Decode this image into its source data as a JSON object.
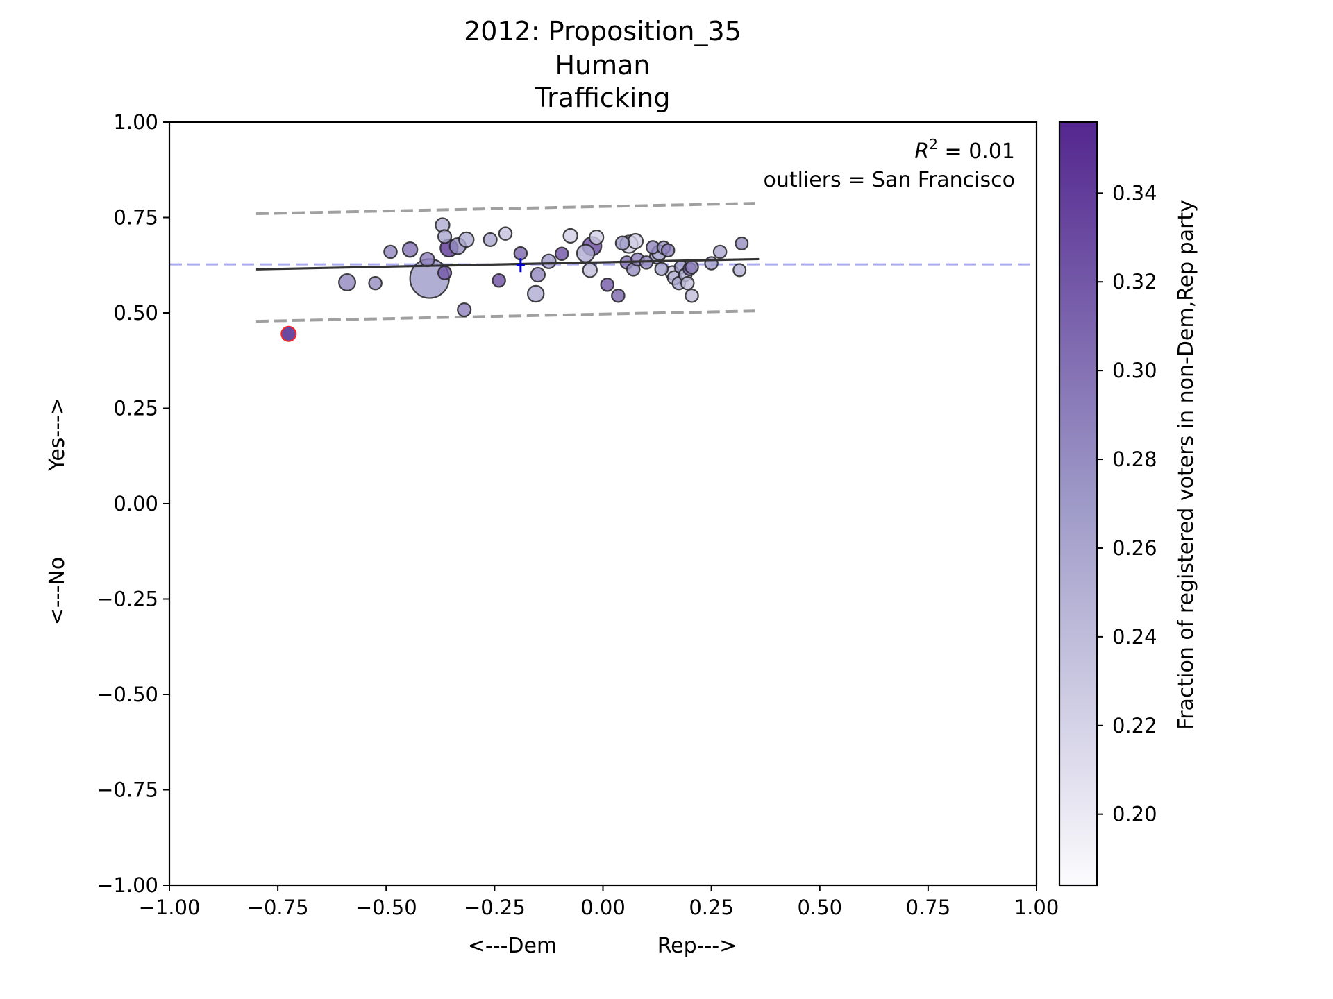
{
  "chart_data": {
    "type": "scatter",
    "title_lines": [
      "2012: Proposition_35",
      "Human",
      "Trafficking"
    ],
    "xlabel_left": "<---Dem",
    "xlabel_right": "Rep--->",
    "ylabel_bottom": "<---No",
    "ylabel_top": "Yes--->",
    "xlim": [
      -1.0,
      1.0
    ],
    "ylim": [
      -1.0,
      1.0
    ],
    "xticks": [
      -1.0,
      -0.75,
      -0.5,
      -0.25,
      0.0,
      0.25,
      0.5,
      0.75,
      1.0
    ],
    "yticks": [
      -1.0,
      -0.75,
      -0.5,
      -0.25,
      0.0,
      0.25,
      0.5,
      0.75,
      1.0
    ],
    "xtick_labels": [
      "−1.00",
      "−0.75",
      "−0.50",
      "−0.25",
      "0.00",
      "0.25",
      "0.50",
      "0.75",
      "1.00"
    ],
    "ytick_labels": [
      "−1.00",
      "−0.75",
      "−0.50",
      "−0.25",
      "0.00",
      "0.25",
      "0.50",
      "0.75",
      "1.00"
    ],
    "grid": false,
    "annotation_r2": {
      "prefix": "R",
      "sup": "2",
      "suffix": " = 0.01"
    },
    "annotation_outliers": "outliers = San Francisco",
    "mean_line_y": 0.627,
    "mean_marker": {
      "x": -0.19,
      "y": 0.625
    },
    "fit_line": {
      "x": [
        -0.8,
        0.36
      ],
      "y": [
        0.614,
        0.641
      ]
    },
    "upper_band": {
      "x": [
        -0.8,
        0.35
      ],
      "y": [
        0.76,
        0.787
      ]
    },
    "lower_band": {
      "x": [
        -0.8,
        0.35
      ],
      "y": [
        0.478,
        0.505
      ]
    },
    "colorbar": {
      "label": "Fraction of registered voters in non-Dem,Rep party",
      "range": [
        0.184,
        0.356
      ],
      "ticks": [
        0.2,
        0.22,
        0.24,
        0.26,
        0.28,
        0.3,
        0.32,
        0.34
      ],
      "tick_labels": [
        "0.20",
        "0.22",
        "0.24",
        "0.26",
        "0.28",
        "0.30",
        "0.32",
        "0.34"
      ],
      "color_low": "#fcfbfd",
      "color_high": "#54278f"
    },
    "outlier_points": [
      {
        "name": "San Francisco",
        "x": -0.725,
        "y": 0.445,
        "size": 1,
        "c": 0.33,
        "edge": "#ff2020"
      }
    ],
    "points": [
      {
        "x": -0.4,
        "y": 0.59,
        "size": 14,
        "c": 0.27
      },
      {
        "x": -0.59,
        "y": 0.58,
        "size": 2.5,
        "c": 0.285
      },
      {
        "x": -0.525,
        "y": 0.578,
        "size": 1.5,
        "c": 0.28
      },
      {
        "x": -0.49,
        "y": 0.66,
        "size": 1.5,
        "c": 0.285
      },
      {
        "x": -0.445,
        "y": 0.666,
        "size": 2,
        "c": 0.3
      },
      {
        "x": -0.405,
        "y": 0.64,
        "size": 1.8,
        "c": 0.29
      },
      {
        "x": -0.37,
        "y": 0.73,
        "size": 1.8,
        "c": 0.255
      },
      {
        "x": -0.365,
        "y": 0.7,
        "size": 1.6,
        "c": 0.26
      },
      {
        "x": -0.365,
        "y": 0.605,
        "size": 1.6,
        "c": 0.32
      },
      {
        "x": -0.355,
        "y": 0.67,
        "size": 2.8,
        "c": 0.345
      },
      {
        "x": -0.335,
        "y": 0.675,
        "size": 2.4,
        "c": 0.28
      },
      {
        "x": -0.315,
        "y": 0.692,
        "size": 2.0,
        "c": 0.255
      },
      {
        "x": -0.32,
        "y": 0.508,
        "size": 1.6,
        "c": 0.29
      },
      {
        "x": -0.26,
        "y": 0.692,
        "size": 1.6,
        "c": 0.26
      },
      {
        "x": -0.225,
        "y": 0.708,
        "size": 1.5,
        "c": 0.235
      },
      {
        "x": -0.24,
        "y": 0.585,
        "size": 1.5,
        "c": 0.325
      },
      {
        "x": -0.19,
        "y": 0.656,
        "size": 1.5,
        "c": 0.31
      },
      {
        "x": -0.15,
        "y": 0.6,
        "size": 1.8,
        "c": 0.285
      },
      {
        "x": -0.155,
        "y": 0.55,
        "size": 2.4,
        "c": 0.255
      },
      {
        "x": -0.125,
        "y": 0.635,
        "size": 1.8,
        "c": 0.27
      },
      {
        "x": -0.095,
        "y": 0.655,
        "size": 1.5,
        "c": 0.325
      },
      {
        "x": -0.075,
        "y": 0.702,
        "size": 1.8,
        "c": 0.225
      },
      {
        "x": -0.04,
        "y": 0.656,
        "size": 2.8,
        "c": 0.255
      },
      {
        "x": -0.025,
        "y": 0.675,
        "size": 3.2,
        "c": 0.33
      },
      {
        "x": -0.03,
        "y": 0.612,
        "size": 1.8,
        "c": 0.24
      },
      {
        "x": -0.015,
        "y": 0.698,
        "size": 1.8,
        "c": 0.225
      },
      {
        "x": 0.01,
        "y": 0.574,
        "size": 1.5,
        "c": 0.32
      },
      {
        "x": 0.035,
        "y": 0.545,
        "size": 1.5,
        "c": 0.31
      },
      {
        "x": 0.045,
        "y": 0.683,
        "size": 1.7,
        "c": 0.27
      },
      {
        "x": 0.055,
        "y": 0.632,
        "size": 1.5,
        "c": 0.3
      },
      {
        "x": 0.06,
        "y": 0.68,
        "size": 2.8,
        "c": 0.22
      },
      {
        "x": 0.075,
        "y": 0.688,
        "size": 2.0,
        "c": 0.225
      },
      {
        "x": 0.07,
        "y": 0.614,
        "size": 1.5,
        "c": 0.28
      },
      {
        "x": 0.08,
        "y": 0.64,
        "size": 1.5,
        "c": 0.29
      },
      {
        "x": 0.1,
        "y": 0.632,
        "size": 1.5,
        "c": 0.285
      },
      {
        "x": 0.115,
        "y": 0.672,
        "size": 1.5,
        "c": 0.285
      },
      {
        "x": 0.125,
        "y": 0.648,
        "size": 2.0,
        "c": 0.27
      },
      {
        "x": 0.13,
        "y": 0.658,
        "size": 2.0,
        "c": 0.25
      },
      {
        "x": 0.14,
        "y": 0.671,
        "size": 1.5,
        "c": 0.275
      },
      {
        "x": 0.15,
        "y": 0.664,
        "size": 1.5,
        "c": 0.29
      },
      {
        "x": 0.135,
        "y": 0.615,
        "size": 1.5,
        "c": 0.265
      },
      {
        "x": 0.16,
        "y": 0.605,
        "size": 1.7,
        "c": 0.225
      },
      {
        "x": 0.165,
        "y": 0.592,
        "size": 1.7,
        "c": 0.25
      },
      {
        "x": 0.175,
        "y": 0.578,
        "size": 1.5,
        "c": 0.26
      },
      {
        "x": 0.18,
        "y": 0.62,
        "size": 1.5,
        "c": 0.27
      },
      {
        "x": 0.19,
        "y": 0.6,
        "size": 1.5,
        "c": 0.255
      },
      {
        "x": 0.195,
        "y": 0.578,
        "size": 1.5,
        "c": 0.24
      },
      {
        "x": 0.2,
        "y": 0.615,
        "size": 1.5,
        "c": 0.31
      },
      {
        "x": 0.205,
        "y": 0.62,
        "size": 1.5,
        "c": 0.285
      },
      {
        "x": 0.205,
        "y": 0.545,
        "size": 1.5,
        "c": 0.24
      },
      {
        "x": 0.25,
        "y": 0.63,
        "size": 1.5,
        "c": 0.27
      },
      {
        "x": 0.27,
        "y": 0.66,
        "size": 1.5,
        "c": 0.26
      },
      {
        "x": 0.315,
        "y": 0.612,
        "size": 1.4,
        "c": 0.25
      },
      {
        "x": 0.32,
        "y": 0.682,
        "size": 1.4,
        "c": 0.28
      }
    ]
  }
}
